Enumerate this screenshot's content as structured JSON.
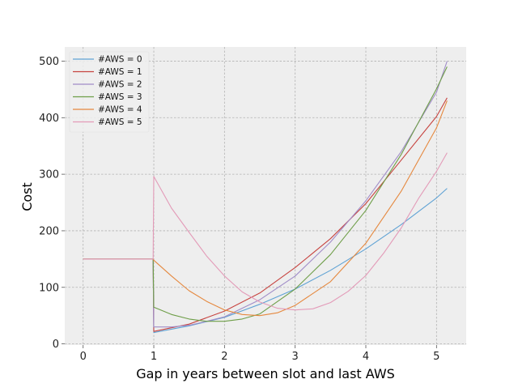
{
  "chart_data": {
    "type": "line",
    "title": "",
    "xlabel": "Gap in years between slot and last AWS",
    "ylabel": "Cost",
    "xlim": [
      -0.26,
      5.42
    ],
    "ylim": [
      -2,
      525
    ],
    "xticks": [
      0,
      1,
      2,
      3,
      4,
      5
    ],
    "yticks": [
      0,
      100,
      200,
      300,
      400,
      500
    ],
    "grid": true,
    "legend_position": "top-left",
    "background": "#eeeeee",
    "series": [
      {
        "name": "#AWS = 0",
        "color": "#5fa2d4",
        "x": [
          0,
          0.25,
          0.5,
          0.75,
          0.99,
          1.0,
          1.5,
          2.0,
          2.5,
          3.0,
          3.5,
          4.0,
          4.5,
          5.0,
          5.15
        ],
        "y": [
          150,
          150,
          150,
          150,
          150,
          20,
          32,
          47,
          70,
          97,
          130,
          168,
          211,
          258,
          275
        ]
      },
      {
        "name": "#AWS = 1",
        "color": "#c74440",
        "x": [
          0,
          0.25,
          0.5,
          0.75,
          0.99,
          1.0,
          1.5,
          2.0,
          2.5,
          3.0,
          3.5,
          4.0,
          4.5,
          5.0,
          5.15
        ],
        "y": [
          150,
          150,
          150,
          150,
          150,
          22,
          35,
          58,
          90,
          135,
          186,
          248,
          325,
          402,
          435
        ]
      },
      {
        "name": "#AWS = 2",
        "color": "#a08cc8",
        "x": [
          0,
          0.25,
          0.5,
          0.75,
          0.99,
          1.0,
          1.25,
          1.5,
          1.75,
          2.0,
          2.5,
          3.0,
          3.5,
          4.0,
          4.5,
          5.0,
          5.15
        ],
        "y": [
          150,
          150,
          150,
          150,
          150,
          30,
          30,
          33,
          40,
          48,
          78,
          120,
          180,
          253,
          340,
          445,
          500
        ]
      },
      {
        "name": "#AWS = 3",
        "color": "#6e9e48",
        "x": [
          0,
          0.25,
          0.5,
          0.75,
          0.99,
          1.0,
          1.25,
          1.5,
          1.75,
          2.0,
          2.25,
          2.5,
          3.0,
          3.5,
          4.0,
          4.5,
          5.0,
          5.15
        ],
        "y": [
          150,
          150,
          150,
          150,
          150,
          65,
          52,
          44,
          40,
          40,
          44,
          53,
          97,
          158,
          236,
          335,
          451,
          490
        ]
      },
      {
        "name": "#AWS = 4",
        "color": "#e5883e",
        "x": [
          0,
          0.25,
          0.5,
          0.75,
          0.99,
          1.0,
          1.25,
          1.5,
          1.75,
          2.0,
          2.25,
          2.5,
          2.75,
          3.0,
          3.5,
          4.0,
          4.5,
          5.0,
          5.15
        ],
        "y": [
          150,
          150,
          150,
          150,
          150,
          148,
          120,
          94,
          75,
          60,
          52,
          50,
          55,
          68,
          110,
          178,
          270,
          382,
          430
        ]
      },
      {
        "name": "#AWS = 5",
        "color": "#e39bb8",
        "x": [
          0,
          0.25,
          0.5,
          0.75,
          0.99,
          1.0,
          1.25,
          1.5,
          1.75,
          2.0,
          2.25,
          2.5,
          2.75,
          3.0,
          3.25,
          3.5,
          3.75,
          4.0,
          4.25,
          4.5,
          4.75,
          5.0,
          5.15
        ],
        "y": [
          150,
          150,
          150,
          150,
          150,
          296,
          240,
          197,
          155,
          120,
          92,
          74,
          63,
          60,
          62,
          73,
          93,
          121,
          160,
          205,
          258,
          305,
          338
        ]
      }
    ]
  }
}
